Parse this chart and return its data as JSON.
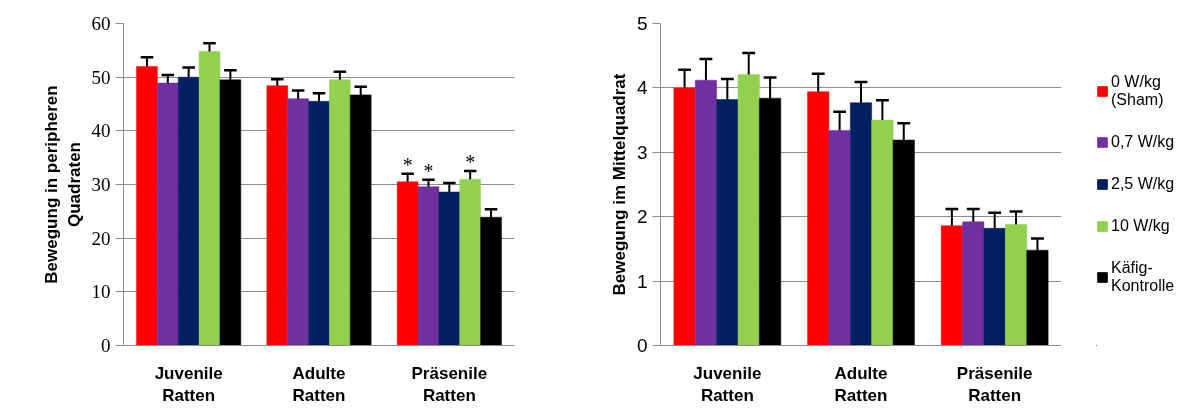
{
  "chart_data": [
    {
      "type": "bar",
      "ylabel": "Bewegung in peripheren\nQuadraten",
      "categories": [
        "Juvenile Ratten",
        "Adulte Ratten",
        "Präsenile Ratten"
      ],
      "series": [
        {
          "color": "#ff0000",
          "values": [
            52.0,
            48.4,
            30.5
          ],
          "errors": [
            [
              52.0,
              53.7
            ],
            [
              48.4,
              49.6
            ],
            [
              30.5,
              32.0
            ]
          ],
          "value_labels": [
            null,
            null,
            "*"
          ]
        },
        {
          "color": "#7030a0",
          "values": [
            48.9,
            46.0,
            29.6
          ],
          "errors": [
            [
              48.9,
              50.4
            ],
            [
              46.0,
              47.5
            ],
            [
              29.6,
              30.9
            ]
          ],
          "value_labels": [
            null,
            null,
            "*"
          ]
        },
        {
          "color": "#002060",
          "values": [
            50.0,
            45.5,
            28.6
          ],
          "errors": [
            [
              50.0,
              51.8
            ],
            [
              45.5,
              47.0
            ],
            [
              28.6,
              30.3
            ]
          ]
        },
        {
          "color": "#92d050",
          "values": [
            54.8,
            49.5,
            31.0
          ],
          "errors": [
            [
              54.8,
              56.3
            ],
            [
              49.5,
              51.0
            ],
            [
              31.0,
              32.5
            ]
          ],
          "value_labels": [
            null,
            null,
            "*"
          ]
        },
        {
          "color": "#000000",
          "values": [
            49.5,
            46.7,
            23.9
          ],
          "errors": [
            [
              49.5,
              51.3
            ],
            [
              46.7,
              48.2
            ],
            [
              23.9,
              25.4
            ]
          ]
        }
      ],
      "ylim": [
        0,
        60
      ],
      "yticks": [
        0,
        10,
        20,
        30,
        40,
        50,
        60
      ],
      "grid": "y"
    },
    {
      "type": "bar",
      "ylabel": "Bewegung im Mittelquadrat",
      "categories": [
        "Juvenile Ratten",
        "Adulte Ratten",
        "Präsenile Ratten"
      ],
      "series": [
        {
          "name": "0 W/kg (Sham)",
          "color": "#ff0000",
          "values": [
            4.0,
            3.94,
            1.86
          ],
          "errors": [
            [
              4.0,
              4.28
            ],
            [
              3.94,
              4.22
            ],
            [
              1.86,
              2.12
            ]
          ]
        },
        {
          "name": "0,7 W/kg",
          "color": "#7030a0",
          "values": [
            4.12,
            3.34,
            1.92
          ],
          "errors": [
            [
              4.12,
              4.45
            ],
            [
              3.34,
              3.63
            ],
            [
              1.92,
              2.12
            ]
          ]
        },
        {
          "name": "2,5 W/kg",
          "color": "#002060",
          "values": [
            3.82,
            3.77,
            1.82
          ],
          "errors": [
            [
              3.82,
              4.14
            ],
            [
              3.77,
              4.09
            ],
            [
              1.82,
              2.06
            ]
          ]
        },
        {
          "name": "10 W/kg",
          "color": "#92d050",
          "values": [
            4.21,
            3.5,
            1.88
          ],
          "errors": [
            [
              4.21,
              4.54
            ],
            [
              3.5,
              3.81
            ],
            [
              1.88,
              2.08
            ]
          ]
        },
        {
          "name": "Käfig-Kontrolle",
          "color": "#000000",
          "values": [
            3.84,
            3.19,
            1.48
          ],
          "errors": [
            [
              3.84,
              4.16
            ],
            [
              3.19,
              3.45
            ],
            [
              1.48,
              1.66
            ]
          ]
        }
      ],
      "ylim": [
        0,
        5
      ],
      "yticks": [
        0,
        1,
        2,
        3,
        4,
        5
      ],
      "grid": "y",
      "legend": "right"
    }
  ]
}
